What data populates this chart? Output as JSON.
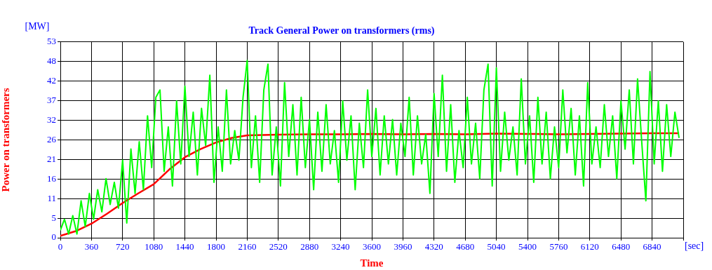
{
  "chart_data": {
    "type": "line",
    "title": "Track General Power on transformers (rms)",
    "xlabel": "Time",
    "ylabel": "Power on transformers",
    "annotations": [
      "[MW]",
      "[sec]"
    ],
    "xlim": [
      0,
      7200
    ],
    "xticks": [
      0,
      360,
      720,
      1080,
      1440,
      1800,
      2160,
      2520,
      2880,
      3240,
      3600,
      3960,
      4320,
      4680,
      5040,
      5400,
      5760,
      6120,
      6480,
      6840,
      {
        "value": 7200,
        "label": null
      }
    ],
    "ylim": [
      0,
      53
    ],
    "yticks": [
      0,
      {
        "value": 5.3,
        "label": "5"
      },
      {
        "value": 10.6,
        "label": "11"
      },
      {
        "value": 15.9,
        "label": "16"
      },
      {
        "value": 21.2,
        "label": "21"
      },
      {
        "value": 26.5,
        "label": "26"
      },
      {
        "value": 31.8,
        "label": "32"
      },
      {
        "value": 37.1,
        "label": "37"
      },
      {
        "value": 42.4,
        "label": "42"
      },
      {
        "value": 47.7,
        "label": "48"
      },
      53
    ],
    "grid": true,
    "marker": "none",
    "line_style": "solid",
    "series": [
      {
        "color": "#00ff00",
        "x": [
          0,
          48,
          96,
          144,
          192,
          240,
          288,
          336,
          384,
          432,
          480,
          528,
          576,
          624,
          672,
          720,
          768,
          816,
          864,
          912,
          960,
          1008,
          1056,
          1104,
          1152,
          1200,
          1248,
          1296,
          1344,
          1392,
          1440,
          1488,
          1536,
          1584,
          1632,
          1680,
          1728,
          1776,
          1824,
          1872,
          1920,
          1968,
          2016,
          2064,
          2112,
          2160,
          2208,
          2256,
          2304,
          2352,
          2400,
          2448,
          2496,
          2544,
          2592,
          2640,
          2688,
          2736,
          2784,
          2832,
          2880,
          2928,
          2976,
          3024,
          3072,
          3120,
          3168,
          3216,
          3264,
          3312,
          3360,
          3408,
          3456,
          3504,
          3552,
          3600,
          3648,
          3696,
          3744,
          3792,
          3840,
          3888,
          3936,
          3984,
          4032,
          4080,
          4128,
          4176,
          4224,
          4272,
          4320,
          4368,
          4416,
          4464,
          4512,
          4560,
          4608,
          4656,
          4704,
          4752,
          4800,
          4848,
          4896,
          4944,
          4992,
          5040,
          5088,
          5136,
          5184,
          5232,
          5280,
          5328,
          5376,
          5424,
          5472,
          5520,
          5568,
          5616,
          5664,
          5712,
          5760,
          5808,
          5856,
          5904,
          5952,
          6000,
          6048,
          6096,
          6144,
          6192,
          6240,
          6288,
          6336,
          6384,
          6432,
          6480,
          6528,
          6576,
          6624,
          6672,
          6720,
          6768,
          6816,
          6864,
          6912,
          6960,
          7008,
          7056,
          7104,
          7152
        ],
        "values": [
          2,
          5,
          1,
          6,
          1,
          10,
          3,
          12,
          5,
          13,
          7,
          16,
          9,
          15,
          8,
          21,
          4,
          24,
          12,
          26,
          13,
          33,
          19,
          38,
          40,
          18,
          30,
          14,
          37,
          20,
          41,
          22,
          34,
          17,
          35,
          25,
          44,
          15,
          30,
          18,
          40,
          20,
          29,
          21,
          38,
          48,
          19,
          33,
          15,
          40,
          47,
          17,
          30,
          14,
          42,
          22,
          36,
          17,
          38,
          19,
          32,
          13,
          34,
          18,
          36,
          20,
          29,
          15,
          37,
          21,
          33,
          13,
          31,
          19,
          40,
          22,
          35,
          17,
          33,
          20,
          32,
          17,
          31,
          22,
          38,
          17,
          33,
          20,
          28,
          12,
          39,
          22,
          44,
          18,
          36,
          15,
          29,
          19,
          38,
          20,
          31,
          16,
          40,
          47,
          14,
          46,
          18,
          34,
          21,
          30,
          17,
          43,
          20,
          33,
          15,
          38,
          20,
          34,
          16,
          30,
          19,
          40,
          23,
          35,
          17,
          33,
          14,
          42,
          20,
          30,
          19,
          36,
          22,
          33,
          16,
          37,
          24,
          40,
          20,
          43,
          26,
          10,
          45,
          20,
          37,
          18,
          36,
          22,
          34,
          27
        ]
      },
      {
        "color": "#ff0000",
        "x": [
          0,
          180,
          360,
          540,
          720,
          900,
          1080,
          1260,
          1440,
          1620,
          1800,
          1980,
          2160,
          2520,
          2880,
          3240,
          3600,
          3960,
          4320,
          4680,
          5040,
          5400,
          5760,
          6120,
          6480,
          6840,
          7152
        ],
        "values": [
          0.5,
          1.8,
          3.8,
          6.5,
          9.4,
          12,
          14.5,
          18.5,
          21.8,
          24,
          25.8,
          27,
          27.7,
          27.9,
          28,
          28,
          28.1,
          28,
          28.1,
          28,
          28.2,
          28.1,
          28,
          28.1,
          28.2,
          28.3,
          28.3
        ]
      }
    ]
  }
}
